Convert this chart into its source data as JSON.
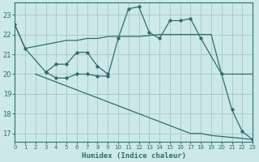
{
  "background_color": "#cce8e8",
  "grid_color": "#aacccc",
  "line_color": "#2e6e6e",
  "x_label": "Humidex (Indice chaleur)",
  "xlim": [
    0,
    23
  ],
  "ylim": [
    16.6,
    23.6
  ],
  "yticks": [
    17,
    18,
    19,
    20,
    21,
    22,
    23
  ],
  "xticks": [
    0,
    1,
    2,
    3,
    4,
    5,
    6,
    7,
    8,
    9,
    10,
    11,
    12,
    13,
    14,
    15,
    16,
    17,
    18,
    19,
    20,
    21,
    22,
    23
  ],
  "series": [
    {
      "x": [
        0,
        1,
        2,
        3,
        4,
        5,
        6,
        7,
        8,
        9,
        10,
        11,
        12,
        13,
        14,
        15,
        16,
        17,
        18,
        19,
        20,
        21,
        22,
        23
      ],
      "y": [
        22.5,
        21.3,
        21.4,
        21.5,
        21.6,
        21.7,
        21.7,
        21.8,
        21.8,
        21.9,
        21.9,
        21.9,
        21.9,
        21.95,
        22.0,
        22.0,
        22.0,
        22.0,
        22.0,
        22.0,
        20.0,
        20.0,
        20.0,
        20.0
      ],
      "has_markers": false
    },
    {
      "x": [
        0,
        1,
        3,
        4,
        5,
        6,
        7,
        8,
        9,
        10,
        11,
        12,
        13,
        14,
        15,
        16,
        17,
        18,
        20,
        21,
        22,
        23
      ],
      "y": [
        22.5,
        21.3,
        20.1,
        19.8,
        19.8,
        20.0,
        20.0,
        19.9,
        19.9,
        21.8,
        23.3,
        23.4,
        22.1,
        21.8,
        22.7,
        22.7,
        22.8,
        21.8,
        20.0,
        18.2,
        17.1,
        16.7
      ],
      "has_markers": true
    },
    {
      "x": [
        2,
        3,
        4,
        5,
        6,
        7,
        8,
        9,
        10,
        11,
        12,
        13,
        14,
        15,
        16,
        17,
        18,
        19,
        20,
        21,
        22,
        23
      ],
      "y": [
        20.0,
        19.8,
        19.6,
        19.4,
        19.2,
        19.0,
        18.8,
        18.6,
        18.4,
        18.2,
        18.0,
        17.8,
        17.6,
        17.4,
        17.2,
        17.0,
        17.0,
        16.9,
        16.85,
        16.8,
        16.75,
        16.7
      ],
      "has_markers": false
    },
    {
      "x": [
        3,
        4,
        5,
        6,
        7,
        8,
        9
      ],
      "y": [
        20.1,
        20.5,
        20.5,
        21.1,
        21.1,
        20.4,
        20.0
      ],
      "has_markers": true
    }
  ]
}
